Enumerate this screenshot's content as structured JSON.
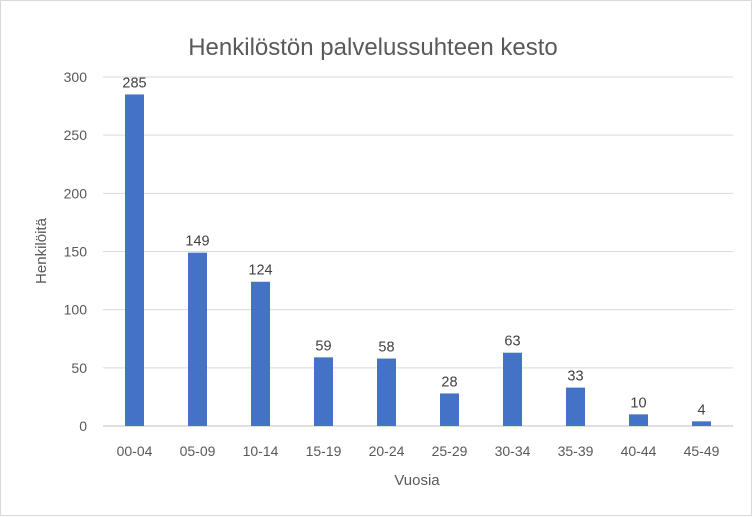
{
  "chart_data": {
    "type": "bar",
    "title": "Henkilöstön palvelussuhteen kesto",
    "xlabel": "Vuosia",
    "ylabel": "Henkilöitä",
    "categories": [
      "00-04",
      "05-09",
      "10-14",
      "15-19",
      "20-24",
      "25-29",
      "30-34",
      "35-39",
      "40-44",
      "45-49"
    ],
    "values": [
      285,
      149,
      124,
      59,
      58,
      28,
      63,
      33,
      10,
      4
    ],
    "ylim": [
      0,
      300
    ],
    "yticks": [
      0,
      50,
      100,
      150,
      200,
      250,
      300
    ],
    "grid": true,
    "legend": "none",
    "bar_color": "#4472c4"
  }
}
